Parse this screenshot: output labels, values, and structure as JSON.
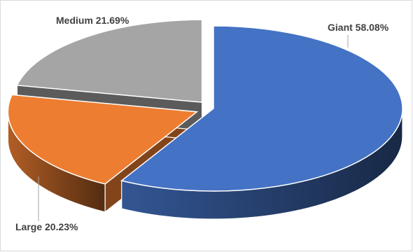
{
  "chart_data": {
    "type": "pie",
    "style": "3d-exploded",
    "legend": "none",
    "slices": [
      {
        "label": "Giant",
        "value": 58.08,
        "display": "58.08%",
        "color": "#4472c4"
      },
      {
        "label": "Large",
        "value": 20.23,
        "display": "20.23%",
        "color": "#ed7d31"
      },
      {
        "label": "Medium",
        "value": 21.69,
        "display": "21.69%",
        "color": "#a5a5a5"
      }
    ]
  }
}
